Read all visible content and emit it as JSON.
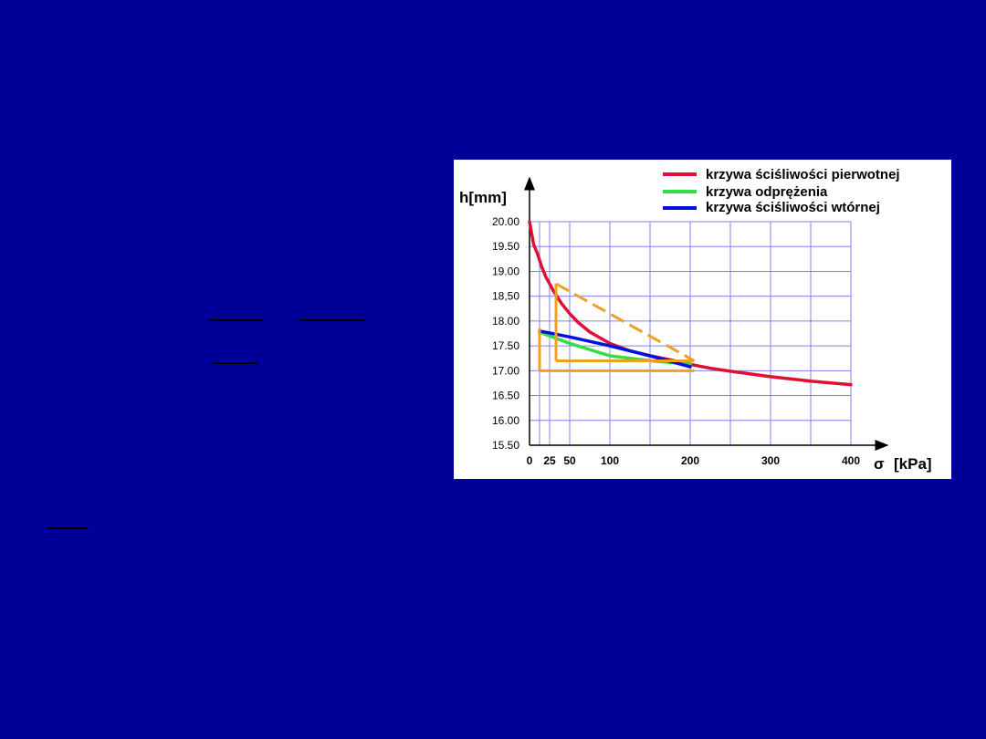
{
  "chart_data": {
    "type": "line",
    "ylabel": "h[mm]",
    "xlabel_symbol": "σ",
    "xlabel_unit": "[kPa]",
    "x_ticks": [
      0,
      25,
      50,
      100,
      200,
      300,
      400
    ],
    "x_tick_labels": [
      "0",
      "25",
      "50",
      "100",
      "200",
      "300",
      "400"
    ],
    "x_grid": [
      0,
      12.5,
      25,
      50,
      100,
      150,
      200,
      250,
      300,
      350,
      400
    ],
    "y_ticks": [
      20.0,
      19.5,
      19.0,
      18.5,
      18.0,
      17.5,
      17.0,
      16.5,
      16.0,
      15.5
    ],
    "y_tick_labels": [
      "20.00",
      "19.50",
      "19.00",
      "18,50",
      "18.00",
      "17.50",
      "17.00",
      "16.50",
      "16.00",
      "15.50"
    ],
    "xlim": [
      0,
      400
    ],
    "ylim": [
      15.5,
      20.0
    ],
    "grid": true,
    "legend_position": "top-right",
    "series": [
      {
        "name": "krzywa ściśliwości pierwotnej",
        "color": "#dd1133",
        "x": [
          0,
          5,
          10,
          15,
          20,
          25,
          30,
          40,
          50,
          60,
          75,
          100,
          125,
          150,
          175,
          200,
          225,
          250,
          300,
          350,
          400
        ],
        "y": [
          20.0,
          19.55,
          19.35,
          19.1,
          18.9,
          18.75,
          18.6,
          18.35,
          18.15,
          17.98,
          17.78,
          17.55,
          17.4,
          17.3,
          17.22,
          17.13,
          17.05,
          16.99,
          16.88,
          16.79,
          16.72
        ]
      },
      {
        "name": "krzywa odprężenia",
        "color": "#33dd44",
        "x": [
          200,
          150,
          100,
          50,
          25,
          12.5
        ],
        "y": [
          17.13,
          17.2,
          17.3,
          17.55,
          17.7,
          17.78
        ]
      },
      {
        "name": "krzywa ściśliwości wtórnej",
        "color": "#0011dd",
        "x": [
          12.5,
          50,
          100,
          150,
          200
        ],
        "y": [
          17.8,
          17.68,
          17.5,
          17.3,
          17.08
        ]
      }
    ],
    "annotations": {
      "color": "#f0a020",
      "solid_segments": [
        {
          "x": [
            12.5,
            12.5
          ],
          "y": [
            17.85,
            17.0
          ]
        },
        {
          "x": [
            12.5,
            205
          ],
          "y": [
            17.0,
            17.0
          ]
        },
        {
          "x": [
            33,
            33
          ],
          "y": [
            18.75,
            17.2
          ]
        },
        {
          "x": [
            33,
            205
          ],
          "y": [
            17.2,
            17.2
          ]
        }
      ],
      "dashed_segments": [
        {
          "x": [
            33,
            205
          ],
          "y": [
            18.75,
            17.2
          ]
        }
      ]
    }
  }
}
